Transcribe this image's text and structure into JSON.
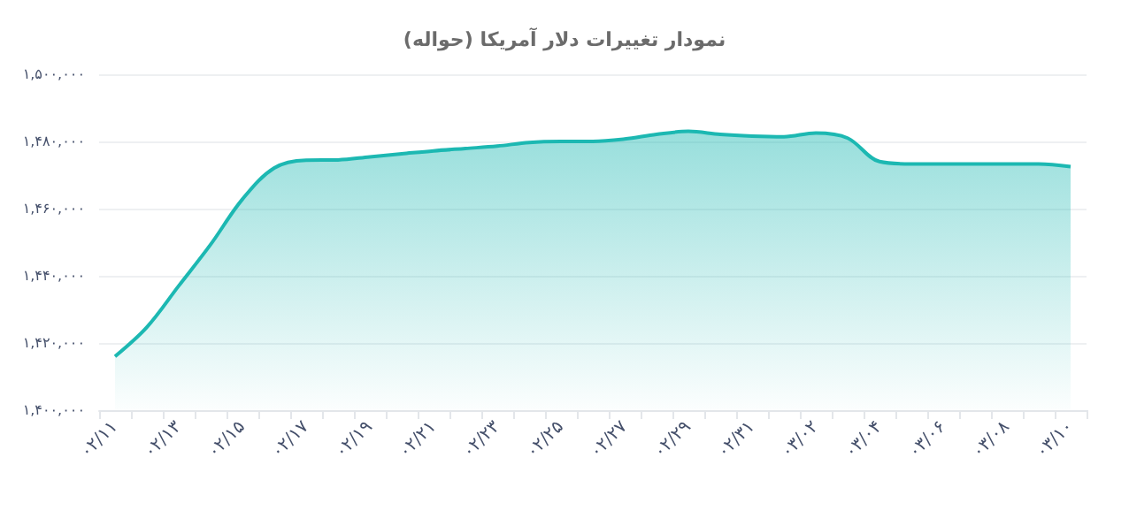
{
  "chart_data": {
    "type": "area",
    "title": "نمودار تغییرات دلار آمریکا (حواله)",
    "categories": [
      "۰۲/۱۱",
      null,
      "۰۲/۱۳",
      null,
      "۰۲/۱۵",
      null,
      "۰۲/۱۷",
      null,
      "۰۲/۱۹",
      null,
      "۰۲/۲۱",
      null,
      "۰۲/۲۳",
      null,
      "۰۲/۲۵",
      null,
      "۰۲/۲۷",
      null,
      "۰۲/۲۹",
      null,
      "۰۲/۳۱",
      null,
      "۰۳/۰۲",
      null,
      "۰۳/۰۴",
      null,
      "۰۳/۰۶",
      null,
      "۰۳/۰۸",
      null,
      "۰۳/۱۰"
    ],
    "series": [
      {
        "color": "#1cb8b2",
        "values": [
          1416000,
          1424700,
          1437000,
          1449300,
          1462800,
          1472100,
          1474400,
          1474500,
          1475400,
          1476300,
          1477200,
          1477900,
          1478600,
          1479700,
          1480000,
          1480000,
          1480700,
          1482100,
          1483000,
          1482100,
          1481600,
          1481400,
          1482500,
          1481000,
          1474000,
          1473300,
          1473300,
          1473300,
          1473300,
          1473300,
          1472500
        ]
      }
    ],
    "ylim": [
      1400000,
      1500000
    ],
    "yticks": [
      {
        "value": 1400000,
        "label": "۱,۴۰۰,۰۰۰"
      },
      {
        "value": 1420000,
        "label": "۱,۴۲۰,۰۰۰"
      },
      {
        "value": 1440000,
        "label": "۱,۴۴۰,۰۰۰"
      },
      {
        "value": 1460000,
        "label": "۱,۴۶۰,۰۰۰"
      },
      {
        "value": 1480000,
        "label": "۱,۴۸۰,۰۰۰"
      },
      {
        "value": 1500000,
        "label": "۱,۵۰۰,۰۰۰"
      }
    ],
    "grid": "y",
    "marker": "none"
  }
}
